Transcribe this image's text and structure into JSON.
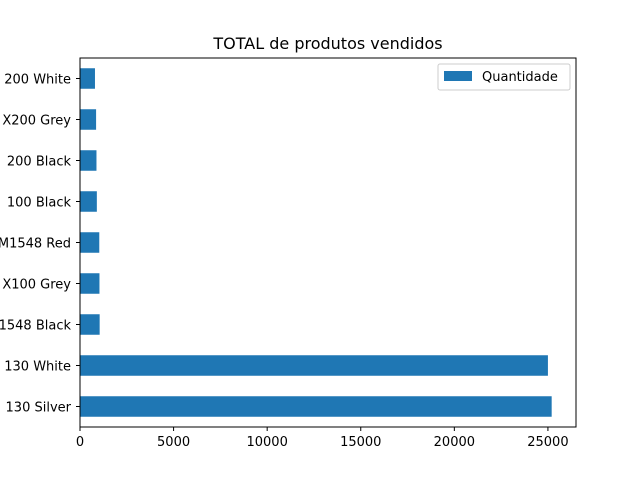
{
  "chart_data": {
    "type": "bar",
    "orientation": "horizontal",
    "title": "TOTAL de produtos vendidos",
    "xlabel": "",
    "ylabel": "",
    "xlim": [
      0,
      26500
    ],
    "x_ticks": [
      0,
      5000,
      10000,
      15000,
      20000,
      25000
    ],
    "x_tick_labels": [
      "0",
      "5000",
      "10000",
      "15000",
      "20000",
      "25000"
    ],
    "categories": [
      "130 Silver",
      "130 White",
      "1548 Black",
      "X100 Grey",
      "M1548 Red",
      "100 Black",
      "200 Black",
      "X200 Grey",
      "200 White"
    ],
    "series": [
      {
        "name": "Quantidade",
        "values": [
          25200,
          25000,
          1050,
          1040,
          1030,
          900,
          880,
          860,
          800
        ]
      }
    ],
    "legend": {
      "position": "top-right"
    },
    "grid": false,
    "colors": {
      "bar": "#1f77b4"
    }
  }
}
